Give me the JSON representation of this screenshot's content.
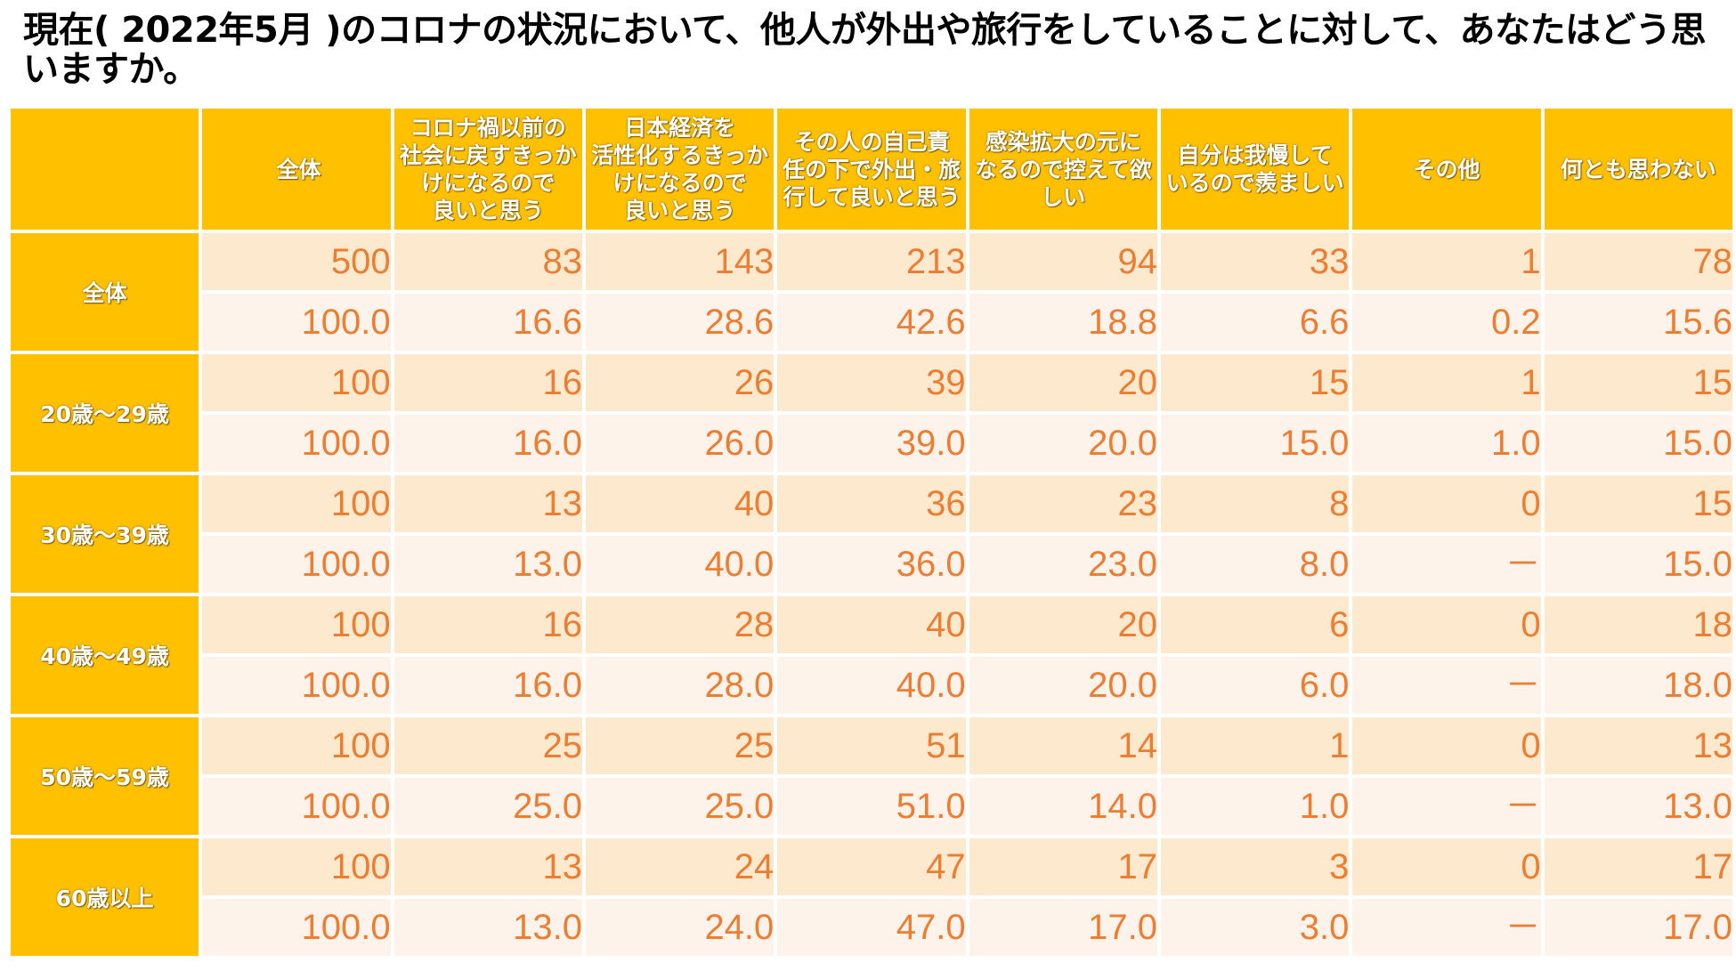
{
  "title": "現在( 2022年5月 )のコロナの状況において、他人が外出や旅行をしていることに対して、あなたはどう思いますか。",
  "colors": {
    "header_bg": "#FFC000",
    "header_text": "#FFFFFF",
    "value_text": "#ED7D31",
    "count_row_bg": "#FCE9CE",
    "pct_row_bg": "#FEF3EA"
  },
  "chart_data": {
    "type": "table",
    "title": "現在( 2022年5月 )のコロナの状況において、他人が外出や旅行をしていることに対して、あなたはどう思いますか。",
    "columns": [
      "全体",
      "コロナ禍以前の社会に戻すきっかけになるので良いと思う",
      "日本経済を活性化するきっかけになるので良いと思う",
      "その人の自己責任の下で外出・旅行して良いと思う",
      "感染拡大の元になるので控えて欲しい",
      "自分は我慢しているので羨ましい",
      "その他",
      "何とも思わない"
    ],
    "column_header_lines": [
      [
        "全体"
      ],
      [
        "コロナ禍以前の",
        "社会に戻すきっか",
        "けになるので",
        "良いと思う"
      ],
      [
        "日本経済を",
        "活性化するきっか",
        "けになるので",
        "良いと思う"
      ],
      [
        "その人の自己責",
        "任の下で外出・旅",
        "行して良いと思う"
      ],
      [
        "感染拡大の元に",
        "なるので控えて欲",
        "しい"
      ],
      [
        "自分は我慢して",
        "いるので羨ましい"
      ],
      [
        "その他"
      ],
      [
        "何とも思わない"
      ]
    ],
    "groups": [
      {
        "name": "全体",
        "counts": [
          "500",
          "83",
          "143",
          "213",
          "94",
          "33",
          "1",
          "78"
        ],
        "percents": [
          "100.0",
          "16.6",
          "28.6",
          "42.6",
          "18.8",
          "6.6",
          "0.2",
          "15.6"
        ]
      },
      {
        "name": "20歳～29歳",
        "counts": [
          "100",
          "16",
          "26",
          "39",
          "20",
          "15",
          "1",
          "15"
        ],
        "percents": [
          "100.0",
          "16.0",
          "26.0",
          "39.0",
          "20.0",
          "15.0",
          "1.0",
          "15.0"
        ]
      },
      {
        "name": "30歳～39歳",
        "counts": [
          "100",
          "13",
          "40",
          "36",
          "23",
          "8",
          "0",
          "15"
        ],
        "percents": [
          "100.0",
          "13.0",
          "40.0",
          "36.0",
          "23.0",
          "8.0",
          "－",
          "15.0"
        ]
      },
      {
        "name": "40歳～49歳",
        "counts": [
          "100",
          "16",
          "28",
          "40",
          "20",
          "6",
          "0",
          "18"
        ],
        "percents": [
          "100.0",
          "16.0",
          "28.0",
          "40.0",
          "20.0",
          "6.0",
          "－",
          "18.0"
        ]
      },
      {
        "name": "50歳～59歳",
        "counts": [
          "100",
          "25",
          "25",
          "51",
          "14",
          "1",
          "0",
          "13"
        ],
        "percents": [
          "100.0",
          "25.0",
          "25.0",
          "51.0",
          "14.0",
          "1.0",
          "－",
          "13.0"
        ]
      },
      {
        "name": "60歳以上",
        "counts": [
          "100",
          "13",
          "24",
          "47",
          "17",
          "3",
          "0",
          "17"
        ],
        "percents": [
          "100.0",
          "13.0",
          "24.0",
          "47.0",
          "17.0",
          "3.0",
          "－",
          "17.0"
        ]
      }
    ]
  }
}
